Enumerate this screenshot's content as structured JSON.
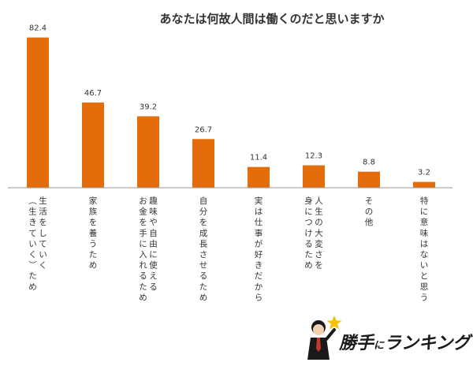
{
  "chart_data": {
    "type": "bar",
    "title": "あなたは何故人間は働くのだと思いますか",
    "categories": [
      "生活をしていく（生きていく）ため",
      "家族を養うため",
      "趣味や自由に使えるお金を手に入れるため",
      "自分を成長させるため",
      "実は仕事が好きだから",
      "人生の大変さを身につけるため",
      "その他",
      "特に意味はないと思う"
    ],
    "category_lines": [
      [
        "生活をしていく",
        "（生きていく）ため"
      ],
      [
        "家族を養うため"
      ],
      [
        "趣味や自由に使える",
        "お金を手に入れるため"
      ],
      [
        "自分を成長させるため"
      ],
      [
        "実は仕事が好きだから"
      ],
      [
        "人生の大変さを",
        "身につけるため"
      ],
      [
        "その他"
      ],
      [
        "特に意味はないと思う"
      ]
    ],
    "values": [
      82.4,
      46.7,
      39.2,
      26.7,
      11.4,
      12.3,
      8.8,
      3.2
    ],
    "value_labels": [
      "82.4",
      "46.7",
      "39.2",
      "26.7",
      "11.4",
      "12.3",
      "8.8",
      "3.2"
    ],
    "ylim": [
      0,
      100
    ],
    "grid": false,
    "bar_color": "#E46C0A"
  },
  "brand": {
    "text_main": "勝手",
    "text_small": "に",
    "text_tail": "ランキング",
    "star_color": "#F5C400",
    "text_color": "#1A1A1A",
    "icon": "businessman-mascot-icon"
  }
}
